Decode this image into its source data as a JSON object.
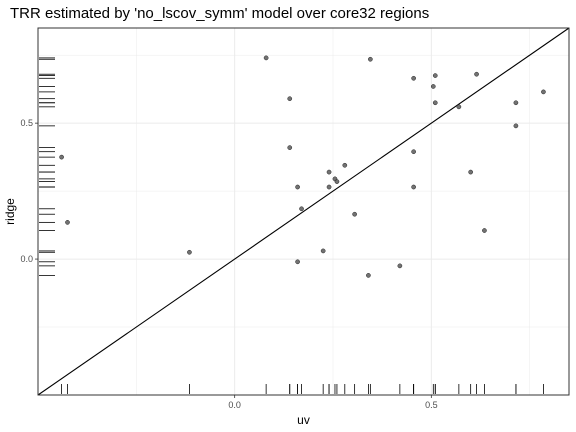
{
  "chart_data": {
    "type": "scatter",
    "title": "TRR estimated by 'no_lscov_symm' model over core32 regions",
    "xlabel": "uv",
    "ylabel": "ridge",
    "xlim": [
      -0.5,
      0.85
    ],
    "ylim": [
      -0.5,
      0.85
    ],
    "x_ticks": [
      0.0,
      0.5
    ],
    "x_tick_labels": [
      "0.0",
      "0.5"
    ],
    "y_ticks": [
      0.0,
      0.5
    ],
    "y_tick_labels": [
      "0.0",
      "0.5"
    ],
    "grid": true,
    "reference_line": "y = x",
    "rug": true,
    "points": [
      {
        "x": -0.44,
        "y": 0.375
      },
      {
        "x": -0.425,
        "y": 0.135
      },
      {
        "x": -0.115,
        "y": 0.025
      },
      {
        "x": 0.08,
        "y": 0.74
      },
      {
        "x": 0.14,
        "y": 0.59
      },
      {
        "x": 0.14,
        "y": 0.41
      },
      {
        "x": 0.16,
        "y": 0.265
      },
      {
        "x": 0.16,
        "y": -0.01
      },
      {
        "x": 0.17,
        "y": 0.185
      },
      {
        "x": 0.225,
        "y": 0.03
      },
      {
        "x": 0.24,
        "y": 0.32
      },
      {
        "x": 0.24,
        "y": 0.265
      },
      {
        "x": 0.255,
        "y": 0.295
      },
      {
        "x": 0.26,
        "y": 0.285
      },
      {
        "x": 0.28,
        "y": 0.345
      },
      {
        "x": 0.305,
        "y": 0.165
      },
      {
        "x": 0.34,
        "y": -0.06
      },
      {
        "x": 0.345,
        "y": 0.735
      },
      {
        "x": 0.42,
        "y": -0.025
      },
      {
        "x": 0.455,
        "y": 0.665
      },
      {
        "x": 0.455,
        "y": 0.395
      },
      {
        "x": 0.455,
        "y": 0.265
      },
      {
        "x": 0.505,
        "y": 0.635
      },
      {
        "x": 0.51,
        "y": 0.675
      },
      {
        "x": 0.51,
        "y": 0.575
      },
      {
        "x": 0.57,
        "y": 0.56
      },
      {
        "x": 0.6,
        "y": 0.32
      },
      {
        "x": 0.615,
        "y": 0.68
      },
      {
        "x": 0.635,
        "y": 0.105
      },
      {
        "x": 0.715,
        "y": 0.575
      },
      {
        "x": 0.715,
        "y": 0.49
      },
      {
        "x": 0.785,
        "y": 0.615
      }
    ],
    "colors": {
      "point": "#595959",
      "point_edge": "#262626",
      "line": "#000000",
      "grid": "#ebebeb",
      "panel_border": "#333333"
    }
  }
}
